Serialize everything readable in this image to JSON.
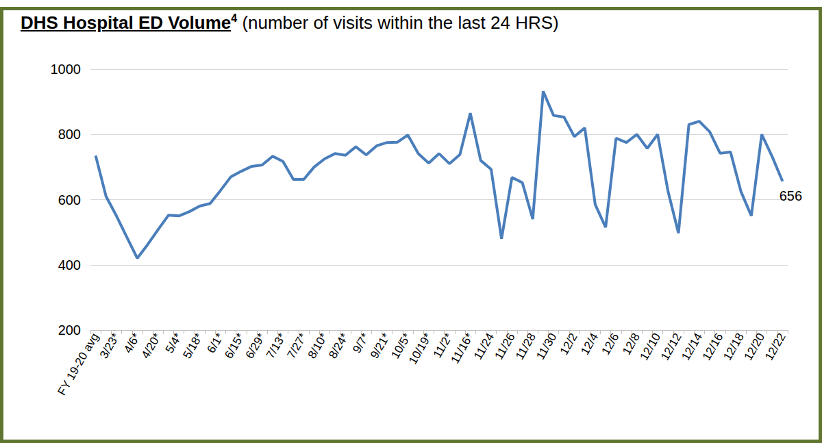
{
  "chart_data": {
    "type": "line",
    "title": "DHS Hospital ED Volume",
    "title_footnote": "4",
    "subtitle": "(number of visits within the last 24 HRS)",
    "categories": [
      "FY 19-20 avg",
      null,
      "3/23*",
      null,
      "4/6*",
      null,
      "4/20*",
      null,
      "5/4*",
      null,
      "5/18*",
      null,
      "6/1*",
      null,
      "6/15*",
      null,
      "6/29*",
      null,
      "7/13*",
      null,
      "7/27*",
      null,
      "8/10*",
      null,
      "8/24*",
      null,
      "9/7*",
      null,
      "9/21*",
      null,
      "10/5*",
      null,
      "10/19*",
      null,
      "11/2*",
      null,
      "11/16*",
      null,
      "11/24",
      null,
      "11/26",
      null,
      "11/28",
      null,
      "11/30",
      null,
      "12/2",
      null,
      "12/4",
      null,
      "12/6",
      null,
      "12/8",
      null,
      "12/10",
      null,
      "12/12",
      null,
      "12/14",
      null,
      "12/16",
      null,
      "12/18",
      null,
      "12/20",
      null,
      "12/22"
    ],
    "values": [
      735,
      610,
      550,
      485,
      420,
      462,
      508,
      552,
      550,
      563,
      580,
      588,
      628,
      670,
      687,
      702,
      706,
      733,
      717,
      662,
      662,
      700,
      725,
      741,
      736,
      762,
      737,
      765,
      775,
      776,
      798,
      741,
      712,
      741,
      710,
      738,
      865,
      720,
      693,
      480,
      668,
      652,
      540,
      932,
      858,
      853,
      793,
      820,
      585,
      515,
      788,
      775,
      800,
      757,
      800,
      625,
      497,
      830,
      840,
      808,
      742,
      746,
      625,
      550,
      800,
      732,
      656
    ],
    "color": "#4a7ebb",
    "ylim": [
      200,
      1000
    ],
    "yticks": [
      200,
      400,
      600,
      800,
      1000
    ],
    "grid": true,
    "marker": "none",
    "annotations": [
      {
        "category": "12/22",
        "text": "656"
      }
    ]
  }
}
